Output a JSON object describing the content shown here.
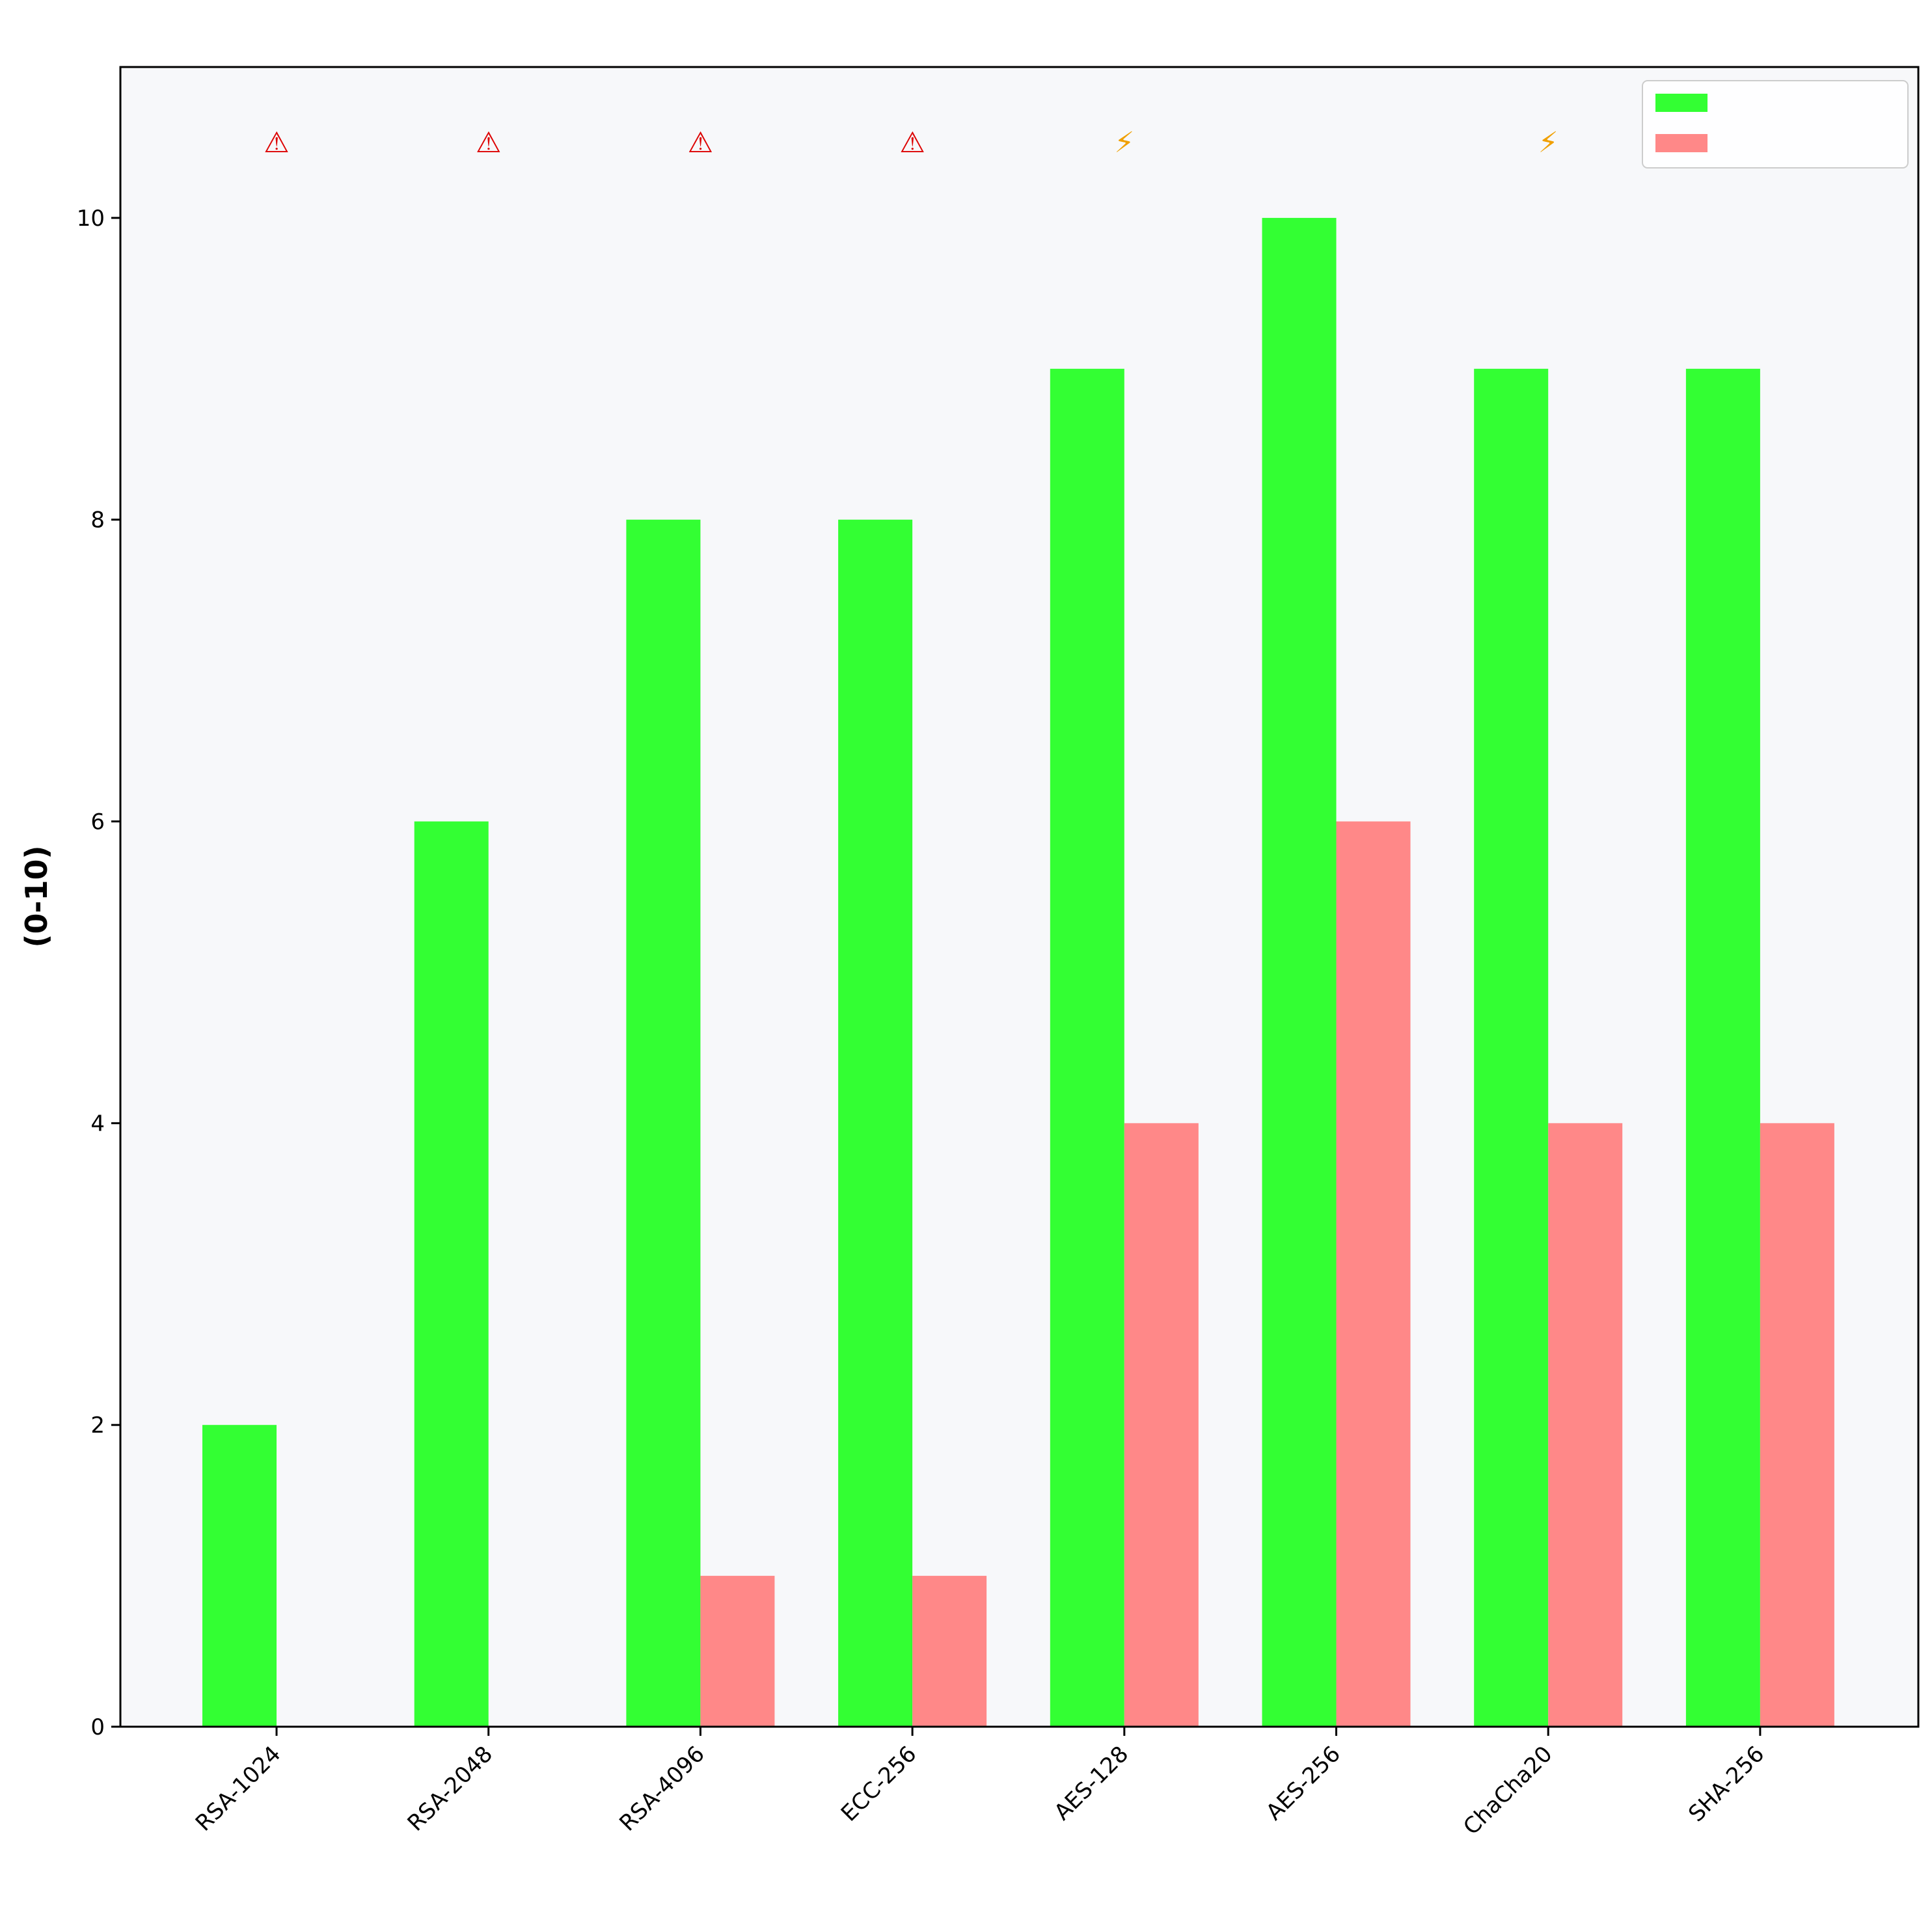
{
  "chart_data": {
    "type": "bar",
    "title": "",
    "xlabel": "",
    "ylabel": "(0-10)",
    "categories": [
      "RSA-1024",
      "RSA-2048",
      "RSA-4096",
      "ECC-256",
      "AES-128",
      "AES-256",
      "ChaCha20",
      "SHA-256"
    ],
    "series": [
      {
        "values": [
          2,
          6,
          8,
          8,
          9,
          10,
          9,
          9
        ],
        "color": "#33ff33"
      },
      {
        "values": [
          0,
          0,
          1,
          1,
          4,
          6,
          4,
          4
        ],
        "color": "#ff8888"
      }
    ],
    "annotations": [
      {
        "category": "RSA-1024",
        "text": "⚠",
        "color": "#dd0000"
      },
      {
        "category": "RSA-2048",
        "text": "⚠",
        "color": "#dd0000"
      },
      {
        "category": "RSA-4096",
        "text": "⚠",
        "color": "#dd0000"
      },
      {
        "category": "ECC-256",
        "text": "⚠",
        "color": "#dd0000"
      },
      {
        "category": "AES-128",
        "text": "⚡",
        "color": "#f0a000"
      },
      {
        "category": "ChaCha20",
        "text": "⚡",
        "color": "#f0a000"
      }
    ],
    "yticks": [
      0,
      2,
      4,
      6,
      8,
      10
    ],
    "ylim": [
      0,
      11
    ],
    "grid": false,
    "legend": "top-right",
    "plot_background": "#f7f8fa"
  }
}
